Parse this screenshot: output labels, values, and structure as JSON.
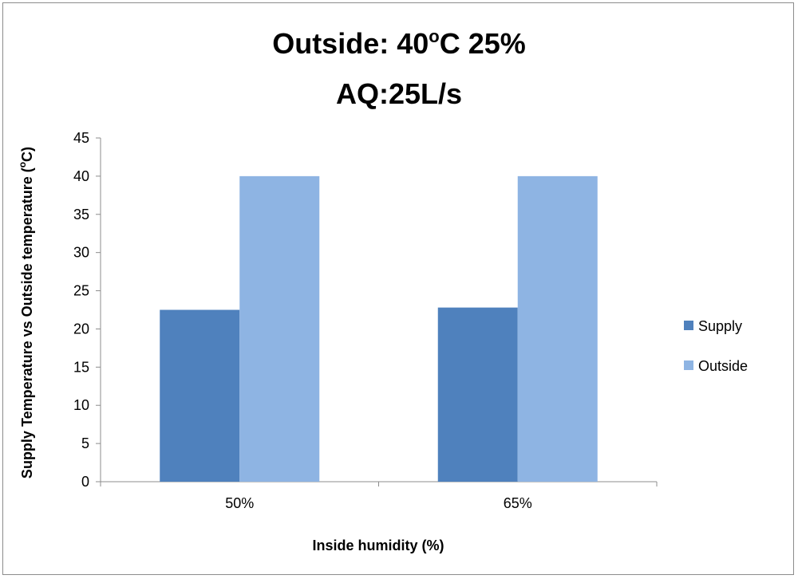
{
  "chart_data": {
    "type": "bar",
    "title_line1": "Outside: 40",
    "title_degree_sup": "o",
    "title_line1_rest": "C 25%",
    "title_line2": "AQ:25L/s",
    "xlabel": "Inside humidity (%)",
    "ylabel_main": "Supply Temperature vs Outside temperature (",
    "ylabel_sup": "o",
    "ylabel_end": "C)",
    "categories": [
      "50%",
      "65%"
    ],
    "series": [
      {
        "name": "Supply",
        "values": [
          22.5,
          22.8
        ],
        "color": "#4f81bd"
      },
      {
        "name": "Outside",
        "values": [
          40,
          40
        ],
        "color": "#8eb4e3"
      }
    ],
    "ylim": [
      0,
      45
    ],
    "yticks": [
      0,
      5,
      10,
      15,
      20,
      25,
      30,
      35,
      40,
      45
    ],
    "grid": false,
    "legend_position": "right"
  }
}
